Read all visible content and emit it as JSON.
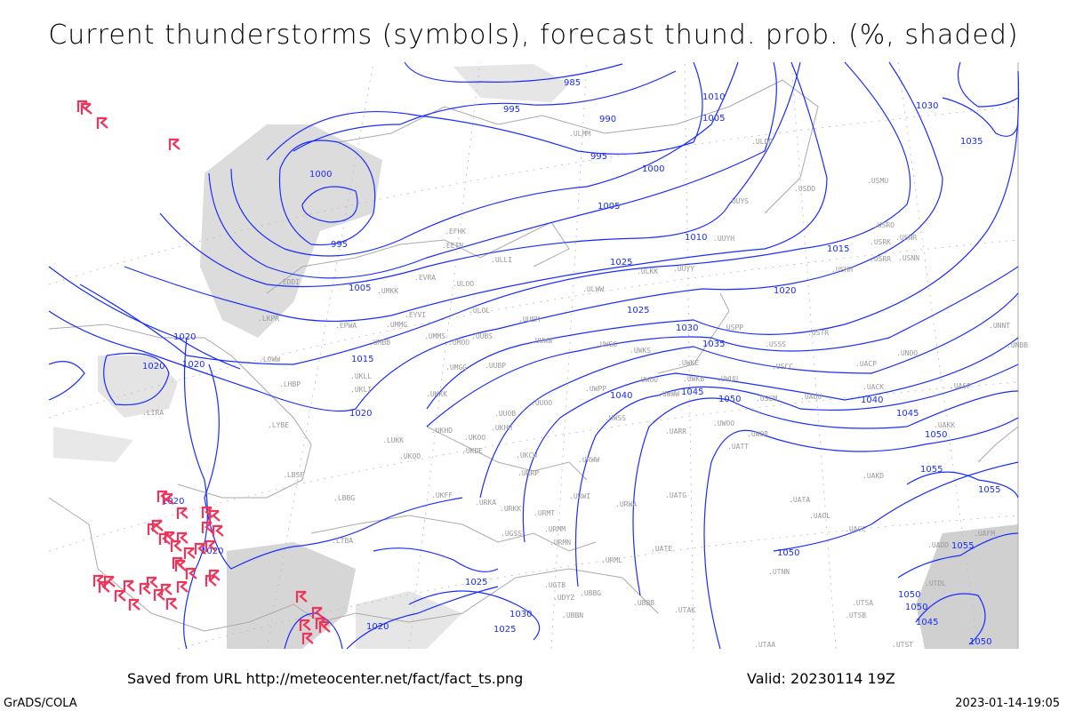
{
  "title": "Current thunderstorms (symbols), forecast thund. prob. (%, shaded)",
  "footer": {
    "saved_from": "Saved from URL http://meteocenter.net/fact/fact_ts.png",
    "valid": "Valid: 20230114 19Z",
    "software": "GrADS/COLA",
    "timestamp": "2023-01-14-19:05"
  },
  "colors": {
    "isobar": "#1a2cff",
    "thunderstorm_symbol": "#f0345a",
    "coastline": "#aaaaaa",
    "probability_shading": "#d8d8d8"
  },
  "icons": {
    "thunderstorm": "thunderstorm-symbol-icon"
  },
  "isobar_labels": [
    "985",
    "995",
    "990",
    "995",
    "1010",
    "1005",
    "1000",
    "1005",
    "995",
    "1000",
    "1005",
    "1010",
    "1015",
    "1020",
    "1025",
    "1020",
    "1020",
    "1015",
    "1020",
    "1025",
    "1030",
    "1035",
    "1040",
    "1045",
    "1050",
    "1040",
    "1045",
    "1050",
    "1055",
    "1030",
    "1035",
    "1020",
    "1020",
    "1020",
    "1025",
    "1030",
    "1025",
    "1020",
    "1050",
    "1050",
    "1055",
    "1050",
    "1045",
    "1055",
    "1050"
  ],
  "stations": [
    "EFHK",
    "EETN",
    "ULLI",
    "EVRA",
    "ULOO",
    "EDDI",
    "UMKK",
    "ULWW",
    "EYVI",
    "ULOL",
    "UUEM",
    "LKPR",
    "EPWA",
    "UMMG",
    "UMBB",
    "UMMS",
    "UMOO",
    "UUBS",
    "UUWW",
    "UWGG",
    "LOWW",
    "UMGG",
    "UUBP",
    "UKLL",
    "LHBP",
    "UKLI",
    "UKKK",
    "UUOO",
    "UUOB",
    "LYBE",
    "UKHH",
    "UKOO",
    "UKHD",
    "LUKK",
    "UKDE",
    "UKCW",
    "UKOO",
    "URWW",
    "URRP",
    "LBSF",
    "UKFF",
    "URKA",
    "URWI",
    "URWA",
    "LBBG",
    "URKK",
    "URMT",
    "URMM",
    "URMN",
    "UGSS",
    "LTBA",
    "UATG",
    "UATE",
    "URML",
    "UBBB",
    "UBBN",
    "UTAK",
    "UGTB",
    "UDYZ",
    "UBBG",
    "UTNN",
    "UTAA",
    "UTSA",
    "UTSB",
    "UTST",
    "UTDL",
    "ULMM",
    "ULDD",
    "USDD",
    "USMU",
    "UUYS",
    "UUYH",
    "USRO",
    "USRK",
    "USNR",
    "USRR",
    "USNN",
    "USHH",
    "ULKK",
    "UUYY",
    "USPP",
    "USTR",
    "USSS",
    "UWKS",
    "UWKE",
    "USCC",
    "UACP",
    "UNOO",
    "UWUU",
    "UWKB",
    "UWUU",
    "UWPP",
    "UWWW",
    "USCM",
    "UAUU",
    "UACK",
    "UASP",
    "UNNT",
    "UNBB",
    "UWSS",
    "UARR",
    "UWOO",
    "UWOR",
    "UATT",
    "UAKK",
    "UATA",
    "UAOL",
    "UACC",
    "UAKD",
    "UADD",
    "UAFM",
    "LIRA"
  ]
}
